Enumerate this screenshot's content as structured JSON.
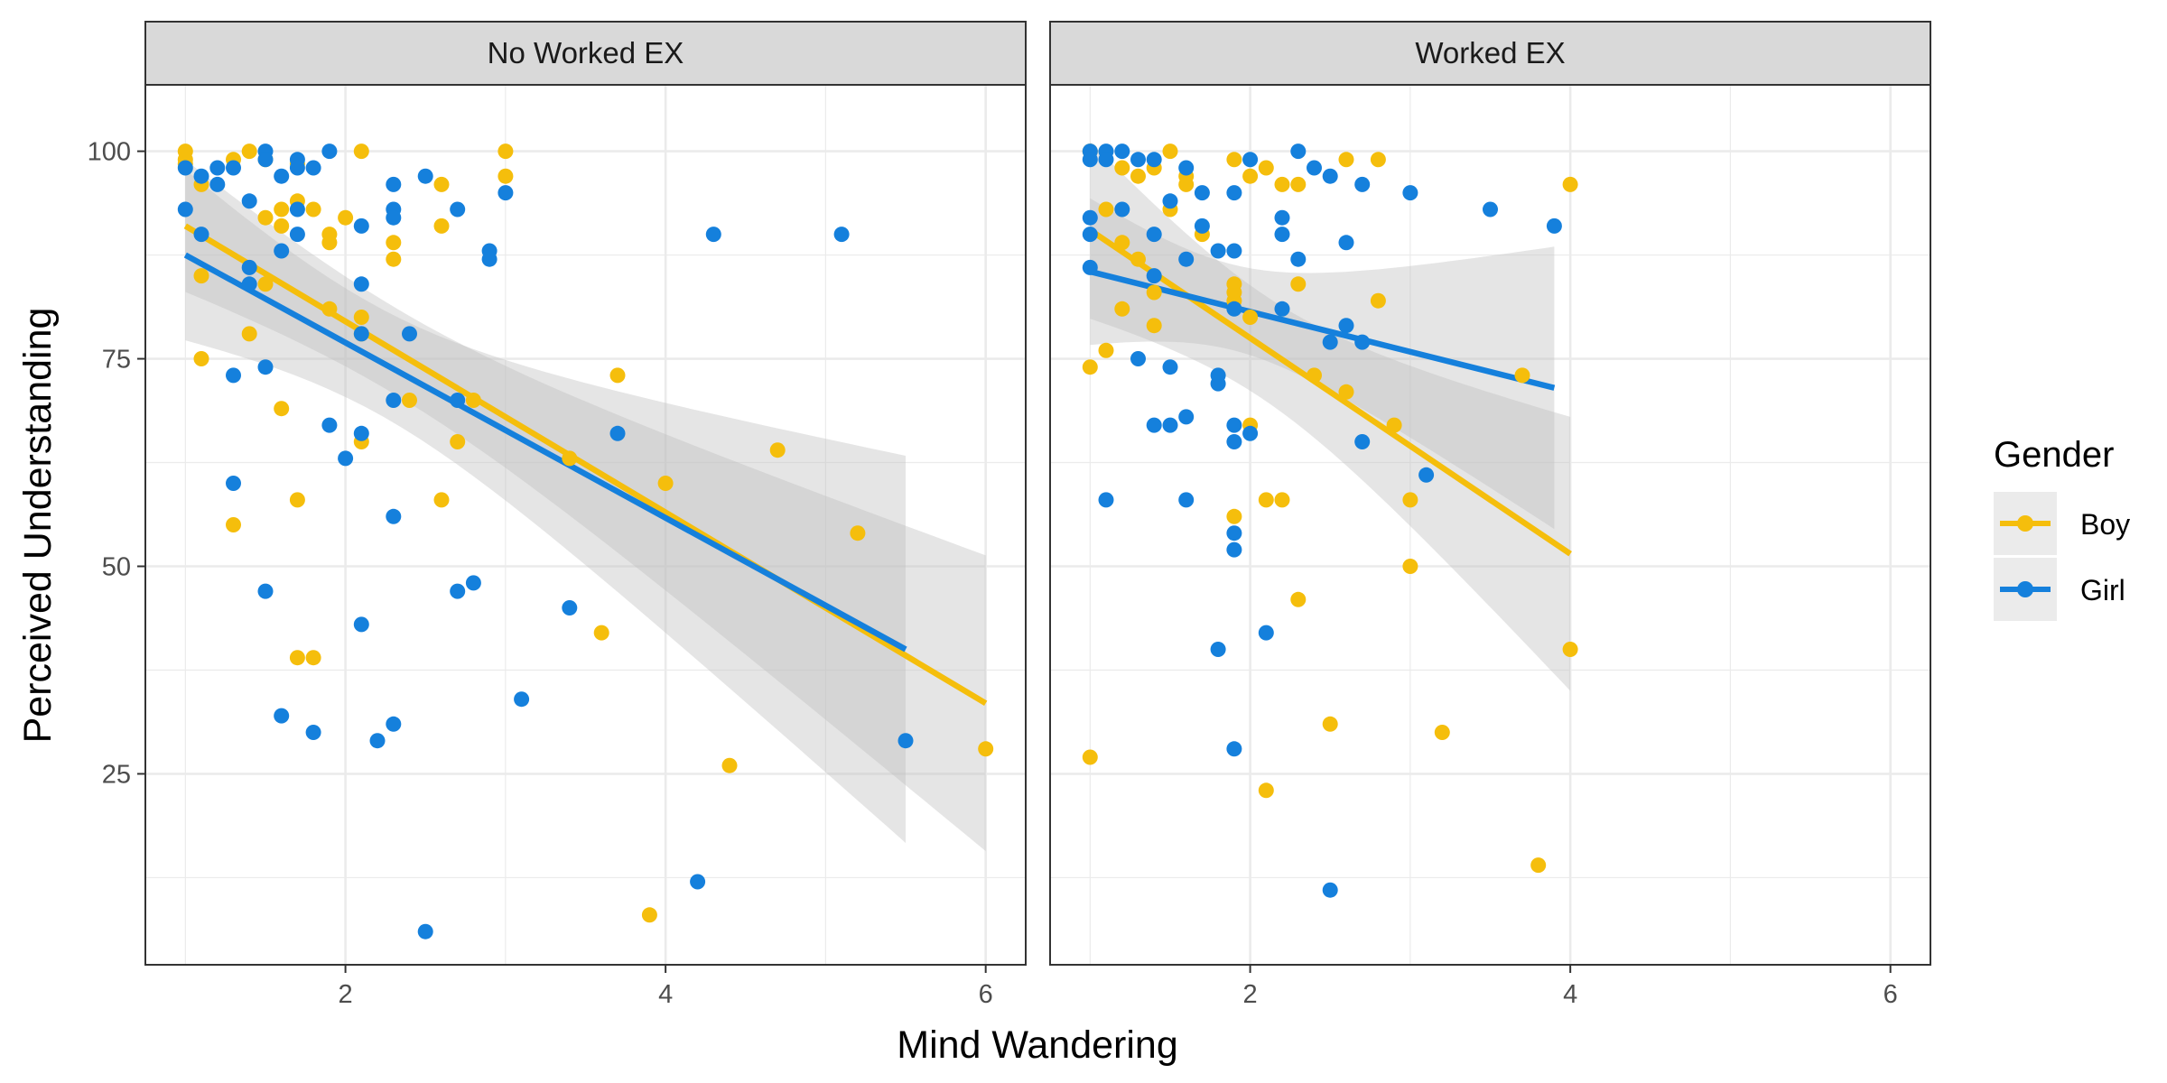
{
  "chart_data": {
    "type": "scatter",
    "xlabel": "Mind Wandering",
    "ylabel": "Perceived Understanding",
    "xlim": [
      0.75,
      6.25
    ],
    "ylim": [
      2,
      108
    ],
    "x_ticks": [
      2,
      4,
      6
    ],
    "y_ticks": [
      25,
      50,
      75,
      100
    ],
    "grid": true,
    "legend": {
      "title": "Gender",
      "position": "right",
      "entries": [
        {
          "label": "Boy",
          "color": "#F5BE0C"
        },
        {
          "label": "Girl",
          "color": "#1580DC"
        }
      ]
    },
    "colors": {
      "Boy": "#F5BE0C",
      "Girl": "#1580DC",
      "band": "#bfbfbf",
      "strip": "#d9d9d9"
    },
    "panels": [
      {
        "title": "No Worked EX",
        "series": [
          {
            "name": "Boy",
            "points": [
              [
                1,
                100
              ],
              [
                1,
                99
              ],
              [
                1,
                98.5
              ],
              [
                1.1,
                96
              ],
              [
                1.3,
                99
              ],
              [
                1.4,
                100
              ],
              [
                1.5,
                99
              ],
              [
                1.7,
                98.5
              ],
              [
                1.5,
                92
              ],
              [
                1.6,
                93
              ],
              [
                1.7,
                94
              ],
              [
                1.6,
                91
              ],
              [
                1.8,
                93
              ],
              [
                1.9,
                90
              ],
              [
                1.9,
                89
              ],
              [
                2,
                92
              ],
              [
                2.1,
                100
              ],
              [
                2.3,
                89
              ],
              [
                2.3,
                87
              ],
              [
                2.6,
                96
              ],
              [
                2.6,
                91
              ],
              [
                3,
                100
              ],
              [
                3,
                97
              ],
              [
                1.1,
                85
              ],
              [
                1.5,
                84
              ],
              [
                1.9,
                81
              ],
              [
                2.1,
                80
              ],
              [
                2.1,
                78
              ],
              [
                1.4,
                78
              ],
              [
                1.1,
                75
              ],
              [
                1.6,
                69
              ],
              [
                2.4,
                70
              ],
              [
                2.7,
                65
              ],
              [
                2.1,
                65
              ],
              [
                2.8,
                70
              ],
              [
                1.7,
                58
              ],
              [
                2.6,
                58
              ],
              [
                1.3,
                55
              ],
              [
                1.7,
                39
              ],
              [
                1.8,
                39
              ],
              [
                3.4,
                63
              ],
              [
                3.7,
                73
              ],
              [
                4,
                60
              ],
              [
                4.7,
                64
              ],
              [
                5.2,
                54
              ],
              [
                3.6,
                42
              ],
              [
                4.4,
                26
              ],
              [
                3.9,
                8
              ],
              [
                6,
                28
              ]
            ],
            "fit": {
              "x": [
                1,
                6
              ],
              "y": [
                91,
                33.5
              ]
            }
          },
          {
            "name": "Girl",
            "points": [
              [
                1,
                98
              ],
              [
                1,
                93
              ],
              [
                1.1,
                97
              ],
              [
                1.2,
                98
              ],
              [
                1.2,
                96
              ],
              [
                1.3,
                98
              ],
              [
                1.5,
                100
              ],
              [
                1.5,
                99
              ],
              [
                1.6,
                97
              ],
              [
                1.7,
                99
              ],
              [
                1.7,
                98
              ],
              [
                1.8,
                98
              ],
              [
                1.9,
                100
              ],
              [
                1.4,
                94
              ],
              [
                1.7,
                93
              ],
              [
                1.7,
                90
              ],
              [
                1.6,
                88
              ],
              [
                1.4,
                86
              ],
              [
                1.1,
                90
              ],
              [
                1.4,
                84
              ],
              [
                2.1,
                91
              ],
              [
                2.3,
                96
              ],
              [
                2.3,
                93
              ],
              [
                2.3,
                92
              ],
              [
                2.5,
                97
              ],
              [
                2.7,
                93
              ],
              [
                2.9,
                88
              ],
              [
                2.9,
                87
              ],
              [
                3,
                95
              ],
              [
                2.1,
                84
              ],
              [
                2.1,
                78
              ],
              [
                2.4,
                78
              ],
              [
                1.3,
                73
              ],
              [
                1.5,
                74
              ],
              [
                2.3,
                70
              ],
              [
                1.9,
                67
              ],
              [
                2.1,
                66
              ],
              [
                2,
                63
              ],
              [
                1.3,
                60
              ],
              [
                2.3,
                56
              ],
              [
                2.7,
                70
              ],
              [
                2.7,
                47
              ],
              [
                2.8,
                48
              ],
              [
                1.5,
                47
              ],
              [
                2.1,
                43
              ],
              [
                1.6,
                32
              ],
              [
                1.8,
                30
              ],
              [
                2.2,
                29
              ],
              [
                2.3,
                31
              ],
              [
                3.1,
                34
              ],
              [
                3.4,
                45
              ],
              [
                3.7,
                66
              ],
              [
                2.5,
                6
              ],
              [
                4.2,
                12
              ],
              [
                4.3,
                90
              ],
              [
                5.1,
                90
              ],
              [
                5.5,
                29
              ]
            ],
            "fit": {
              "x": [
                1,
                5.5
              ],
              "y": [
                87.5,
                40
              ]
            }
          }
        ]
      },
      {
        "title": "Worked EX",
        "series": [
          {
            "name": "Boy",
            "points": [
              [
                1,
                100
              ],
              [
                1.1,
                93
              ],
              [
                1.2,
                98
              ],
              [
                1.2,
                89
              ],
              [
                1.3,
                97
              ],
              [
                1.4,
                98
              ],
              [
                1.5,
                100
              ],
              [
                1.5,
                93
              ],
              [
                1.6,
                97
              ],
              [
                1.6,
                96
              ],
              [
                1.7,
                90
              ],
              [
                1.9,
                99
              ],
              [
                2,
                97
              ],
              [
                2.1,
                98
              ],
              [
                2.2,
                96
              ],
              [
                2.3,
                96
              ],
              [
                2.6,
                99
              ],
              [
                2.8,
                99
              ],
              [
                1.2,
                81
              ],
              [
                1.3,
                87
              ],
              [
                1.4,
                83
              ],
              [
                1.4,
                79
              ],
              [
                1.9,
                84
              ],
              [
                1.9,
                83
              ],
              [
                1.9,
                82
              ],
              [
                2,
                80
              ],
              [
                2.3,
                84
              ],
              [
                2.8,
                82
              ],
              [
                1,
                74
              ],
              [
                1.1,
                76
              ],
              [
                2.4,
                73
              ],
              [
                2.6,
                71
              ],
              [
                2.9,
                67
              ],
              [
                2,
                67
              ],
              [
                3,
                58
              ],
              [
                3.7,
                73
              ],
              [
                1.9,
                56
              ],
              [
                2.1,
                58
              ],
              [
                2.2,
                58
              ],
              [
                3,
                50
              ],
              [
                2.3,
                46
              ],
              [
                2.5,
                31
              ],
              [
                3.2,
                30
              ],
              [
                1,
                27
              ],
              [
                2.1,
                23
              ],
              [
                3.8,
                14
              ],
              [
                4,
                40
              ],
              [
                4,
                96
              ]
            ],
            "fit": {
              "x": [
                1,
                4
              ],
              "y": [
                90.5,
                51.5
              ]
            }
          },
          {
            "name": "Girl",
            "points": [
              [
                1,
                100
              ],
              [
                1,
                99
              ],
              [
                1.1,
                100
              ],
              [
                1.1,
                99
              ],
              [
                1.2,
                100
              ],
              [
                1.3,
                99
              ],
              [
                1.4,
                99
              ],
              [
                1.6,
                98
              ],
              [
                1.7,
                95
              ],
              [
                1.9,
                95
              ],
              [
                2,
                99
              ],
              [
                2.3,
                100
              ],
              [
                2.4,
                98
              ],
              [
                2.5,
                97
              ],
              [
                2.7,
                96
              ],
              [
                3,
                95
              ],
              [
                3.5,
                93
              ],
              [
                3.9,
                91
              ],
              [
                1,
                92
              ],
              [
                1,
                90
              ],
              [
                1.2,
                93
              ],
              [
                1.4,
                90
              ],
              [
                1.5,
                94
              ],
              [
                1.7,
                91
              ],
              [
                1.8,
                88
              ],
              [
                1.9,
                88
              ],
              [
                2.2,
                92
              ],
              [
                2.2,
                90
              ],
              [
                2.3,
                87
              ],
              [
                2.6,
                89
              ],
              [
                1,
                86
              ],
              [
                1.4,
                85
              ],
              [
                1.6,
                87
              ],
              [
                1.9,
                81
              ],
              [
                2.2,
                81
              ],
              [
                2.6,
                79
              ],
              [
                2.7,
                77
              ],
              [
                2.5,
                77
              ],
              [
                1.3,
                75
              ],
              [
                1.5,
                74
              ],
              [
                1.8,
                73
              ],
              [
                1.8,
                72
              ],
              [
                1.4,
                67
              ],
              [
                1.5,
                67
              ],
              [
                1.6,
                68
              ],
              [
                1.9,
                67
              ],
              [
                1.9,
                65
              ],
              [
                2,
                66
              ],
              [
                2.7,
                65
              ],
              [
                3.1,
                61
              ],
              [
                1.1,
                58
              ],
              [
                1.6,
                58
              ],
              [
                1.9,
                54
              ],
              [
                1.9,
                52
              ],
              [
                2.1,
                42
              ],
              [
                1.8,
                40
              ],
              [
                1.9,
                28
              ],
              [
                2.5,
                11
              ]
            ],
            "fit": {
              "x": [
                1,
                3.9
              ],
              "y": [
                85.5,
                71.5
              ]
            }
          }
        ]
      }
    ]
  }
}
